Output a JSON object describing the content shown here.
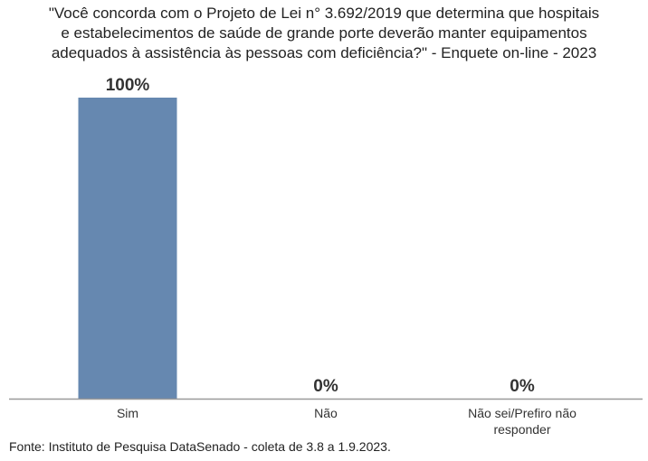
{
  "chart_data": {
    "type": "bar",
    "title_lines": [
      "\"Você concorda com o Projeto de Lei n° 3.692/2019 que determina que hospitais",
      "e estabelecimentos de saúde de grande porte deverão manter equipamentos",
      "adequados à assistência às pessoas com deficiência?\" - Enquete on-line - 2023"
    ],
    "categories": [
      [
        "Sim"
      ],
      [
        "Não"
      ],
      [
        "Não sei/Prefiro não",
        "responder"
      ]
    ],
    "values": [
      100,
      0,
      0
    ],
    "data_labels": [
      "100%",
      "0%",
      "0%"
    ],
    "ylim": [
      0,
      100
    ],
    "grid": false,
    "bar_color": "#6688b0",
    "axis_color": "#999999"
  },
  "source": "Fonte: Instituto de Pesquisa DataSenado - coleta de 3.8 a 1.9.2023."
}
